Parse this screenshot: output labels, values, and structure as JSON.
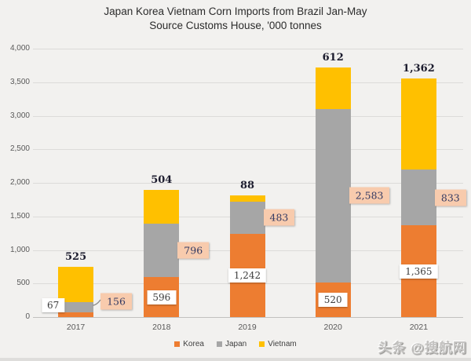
{
  "title": {
    "line1": "Japan Korea Vietnam Corn Imports from Brazil Jan-May",
    "line2": "Source Customs House, '000 tonnes"
  },
  "chart_data": {
    "type": "bar",
    "stacked": true,
    "title": "Japan Korea Vietnam Corn Imports from Brazil Jan-May",
    "subtitle": "Source Customs House, '000 tonnes",
    "unit": "'000 tonnes",
    "categories": [
      "2017",
      "2018",
      "2019",
      "2020",
      "2021"
    ],
    "series": [
      {
        "name": "Korea",
        "color": "#ED7D31",
        "values": [
          67,
          596,
          1242,
          520,
          1365
        ],
        "labels": [
          "67",
          "596",
          "1,242",
          "520",
          "1,365"
        ],
        "label_style": "white-box-on-bar"
      },
      {
        "name": "Japan",
        "color": "#A6A6A6",
        "values": [
          156,
          796,
          483,
          2583,
          833
        ],
        "labels": [
          "156",
          "796",
          "483",
          "2,583",
          "833"
        ],
        "label_style": "peach-callout-right"
      },
      {
        "name": "Vietnam",
        "color": "#FFC000",
        "values": [
          525,
          504,
          88,
          612,
          1362
        ],
        "labels": [
          "525",
          "504",
          "88",
          "612",
          "1,362"
        ],
        "label_style": "bold-above-bar"
      }
    ],
    "totals": [
      748,
      1896,
      1813,
      3715,
      3560
    ],
    "ylim": [
      0,
      4000
    ],
    "ytick_values": [
      0,
      500,
      1000,
      1500,
      2000,
      2500,
      3000,
      3500,
      4000
    ],
    "yticks": [
      "0",
      "500",
      "1,000",
      "1,500",
      "2,000",
      "2,500",
      "3,000",
      "3,500",
      "4,000"
    ],
    "grid": true,
    "legend_position": "bottom"
  },
  "legend": {
    "items": [
      {
        "label": "Korea",
        "color": "#ED7D31"
      },
      {
        "label": "Japan",
        "color": "#A6A6A6"
      },
      {
        "label": "Vietnam",
        "color": "#FFC000"
      }
    ]
  },
  "watermark": "头条 @搜航网",
  "colors": {
    "background": "#F2F1EF",
    "gridline": "#DCDBD9",
    "axis_line": "#C2C1BF",
    "callout_fill": "#F8CBAD",
    "callout_text": "#333A63",
    "axis_text": "#595959",
    "title_text": "#2B2B2B"
  }
}
